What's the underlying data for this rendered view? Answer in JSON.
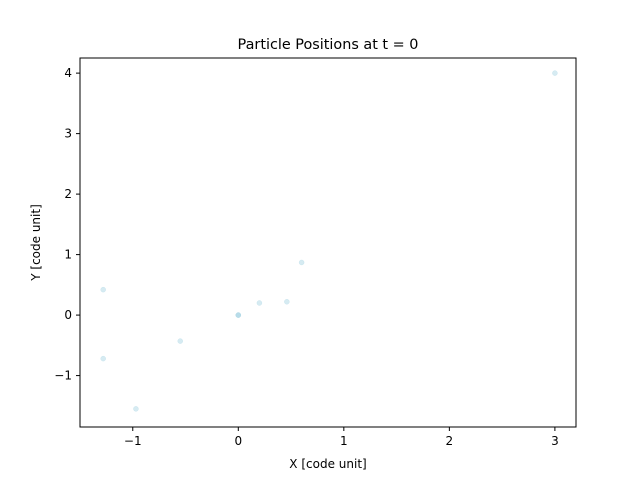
{
  "chart_data": {
    "type": "scatter",
    "title": "Particle Positions at t = 0",
    "xlabel": "X [code unit]",
    "ylabel": "Y [code unit]",
    "xlim": [
      -1.5,
      3.2
    ],
    "ylim": [
      -1.85,
      4.25
    ],
    "xticks": [
      -1,
      0,
      1,
      2,
      3
    ],
    "xtick_labels": [
      "−1",
      "0",
      "1",
      "2",
      "3"
    ],
    "yticks": [
      -1,
      0,
      1,
      2,
      3,
      4
    ],
    "ytick_labels": [
      "−1",
      "0",
      "1",
      "2",
      "3",
      "4"
    ],
    "grid": false,
    "legend": "none",
    "marker_color": "#add8e6",
    "points": [
      {
        "x": 0.0,
        "y": 0.0
      },
      {
        "x": 0.0,
        "y": 0.0
      },
      {
        "x": 0.0,
        "y": 0.0
      },
      {
        "x": 0.2,
        "y": 0.2
      },
      {
        "x": 0.46,
        "y": 0.22
      },
      {
        "x": 0.6,
        "y": 0.87
      },
      {
        "x": -0.55,
        "y": -0.43
      },
      {
        "x": -1.28,
        "y": 0.42
      },
      {
        "x": -1.28,
        "y": -0.72
      },
      {
        "x": -0.97,
        "y": -1.55
      },
      {
        "x": 3.0,
        "y": 4.0
      }
    ]
  }
}
